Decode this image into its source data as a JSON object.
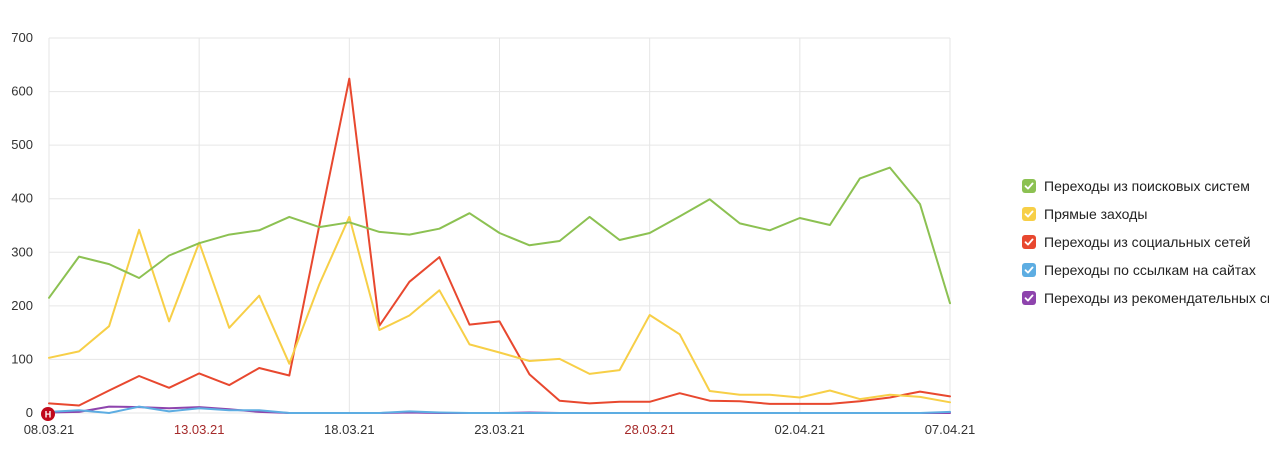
{
  "chart_data": {
    "type": "line",
    "x": [
      "08.03.21",
      "09.03.21",
      "10.03.21",
      "11.03.21",
      "12.03.21",
      "13.03.21",
      "14.03.21",
      "15.03.21",
      "16.03.21",
      "17.03.21",
      "18.03.21",
      "19.03.21",
      "20.03.21",
      "21.03.21",
      "22.03.21",
      "23.03.21",
      "24.03.21",
      "25.03.21",
      "26.03.21",
      "27.03.21",
      "28.03.21",
      "29.03.21",
      "30.03.21",
      "31.03.21",
      "01.04.21",
      "02.04.21",
      "03.04.21",
      "04.04.21",
      "05.04.21",
      "06.04.21",
      "07.04.21"
    ],
    "x_ticks": [
      {
        "label": "08.03.21",
        "index": 0,
        "weekend": false
      },
      {
        "label": "13.03.21",
        "index": 5,
        "weekend": true
      },
      {
        "label": "18.03.21",
        "index": 10,
        "weekend": false
      },
      {
        "label": "23.03.21",
        "index": 15,
        "weekend": false
      },
      {
        "label": "28.03.21",
        "index": 20,
        "weekend": true
      },
      {
        "label": "02.04.21",
        "index": 25,
        "weekend": false
      },
      {
        "label": "07.04.21",
        "index": 30,
        "weekend": false
      }
    ],
    "y_ticks": [
      "0",
      "100",
      "200",
      "300",
      "400",
      "500",
      "600",
      "700"
    ],
    "ylim": [
      0,
      700
    ],
    "grid": true,
    "legend_position": "right",
    "series": [
      {
        "name": "Переходы из поисковых систем",
        "color": "#8cc152",
        "values": [
          215,
          292,
          278,
          252,
          294,
          317,
          333,
          341,
          366,
          347,
          356,
          338,
          333,
          344,
          373,
          336,
          313,
          321,
          366,
          323,
          336,
          367,
          399,
          354,
          341,
          364,
          351,
          438,
          458,
          390,
          205
        ]
      },
      {
        "name": "Прямые заходы",
        "color": "#f7cf47",
        "values": [
          103,
          115,
          162,
          342,
          171,
          318,
          159,
          219,
          92,
          240,
          366,
          155,
          182,
          229,
          128,
          113,
          97,
          101,
          73,
          80,
          183,
          147,
          41,
          34,
          34,
          29,
          42,
          26,
          34,
          30,
          20
        ]
      },
      {
        "name": "Переходы из социальных сетей",
        "color": "#e8482f",
        "values": [
          18,
          14,
          42,
          69,
          47,
          74,
          52,
          84,
          70,
          350,
          624,
          163,
          245,
          291,
          165,
          171,
          72,
          23,
          18,
          21,
          21,
          37,
          23,
          22,
          17,
          17,
          17,
          22,
          29,
          40,
          31
        ]
      },
      {
        "name": "Переходы по ссылкам на сайтах",
        "color": "#5dade2",
        "values": [
          2,
          5,
          0,
          12,
          3,
          9,
          5,
          5,
          0,
          0,
          0,
          0,
          3,
          1,
          0,
          0,
          0,
          0,
          0,
          0,
          0,
          0,
          0,
          0,
          0,
          0,
          0,
          0,
          0,
          0,
          2
        ]
      },
      {
        "name": "Переходы из рекомендательных систем",
        "color": "#8e44ad",
        "values": [
          1,
          2,
          12,
          11,
          9,
          11,
          7,
          2,
          0,
          0,
          0,
          0,
          1,
          0,
          0,
          0,
          1,
          0,
          0,
          0,
          0,
          0,
          0,
          0,
          0,
          0,
          0,
          0,
          0,
          0,
          0
        ]
      }
    ]
  },
  "marker": {
    "label": "Н",
    "color": "#c0081b"
  }
}
